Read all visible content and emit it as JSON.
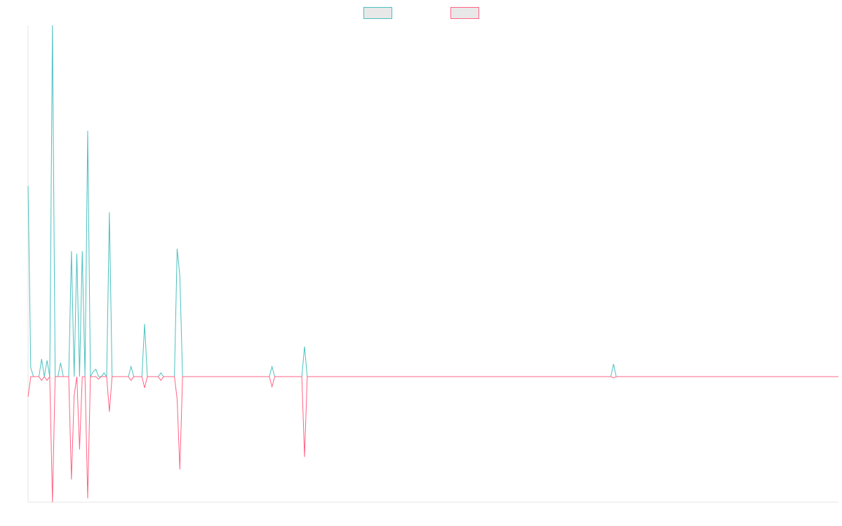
{
  "chart_data": {
    "type": "line",
    "title": "",
    "xlabel": "",
    "ylabel": "",
    "grid": false,
    "legend_placement": "top-center",
    "x_count": 300,
    "ylim": [
      -1.0,
      2.8
    ],
    "series": [
      {
        "label": "",
        "color": "#4bc0c0",
        "fill": "#e8e8e8",
        "points": [
          [
            0,
            1.52
          ],
          [
            1,
            0.07
          ],
          [
            2,
            0.0
          ],
          [
            3,
            0.0
          ],
          [
            4,
            0.0
          ],
          [
            5,
            0.14
          ],
          [
            6,
            0.0
          ],
          [
            7,
            0.13
          ],
          [
            8,
            0.0
          ],
          [
            9,
            2.8
          ],
          [
            10,
            0.0
          ],
          [
            11,
            0.0
          ],
          [
            12,
            0.11
          ],
          [
            13,
            0.0
          ],
          [
            14,
            0.0
          ],
          [
            15,
            0.0
          ],
          [
            16,
            1.0
          ],
          [
            17,
            0.0
          ],
          [
            18,
            0.98
          ],
          [
            19,
            0.0
          ],
          [
            20,
            1.0
          ],
          [
            21,
            0.0
          ],
          [
            22,
            1.96
          ],
          [
            23,
            0.0
          ],
          [
            24,
            0.04
          ],
          [
            25,
            0.06
          ],
          [
            26,
            0.0
          ],
          [
            27,
            0.0
          ],
          [
            28,
            0.03
          ],
          [
            29,
            0.0
          ],
          [
            30,
            1.31
          ],
          [
            31,
            0.0
          ],
          [
            32,
            0.0
          ],
          [
            33,
            0.0
          ],
          [
            34,
            0.0
          ],
          [
            35,
            0.0
          ],
          [
            36,
            0.0
          ],
          [
            37,
            0.0
          ],
          [
            38,
            0.08
          ],
          [
            39,
            0.0
          ],
          [
            40,
            0.0
          ],
          [
            41,
            0.0
          ],
          [
            42,
            0.0
          ],
          [
            43,
            0.42
          ],
          [
            44,
            0.0
          ],
          [
            45,
            0.0
          ],
          [
            46,
            0.0
          ],
          [
            47,
            0.0
          ],
          [
            48,
            0.0
          ],
          [
            49,
            0.03
          ],
          [
            50,
            0.0
          ],
          [
            51,
            0.0
          ],
          [
            52,
            0.0
          ],
          [
            53,
            0.0
          ],
          [
            54,
            0.0
          ],
          [
            55,
            1.02
          ],
          [
            56,
            0.8
          ],
          [
            57,
            0.0
          ],
          [
            58,
            0.0
          ],
          [
            89,
            0.0
          ],
          [
            90,
            0.08
          ],
          [
            91,
            0.0
          ],
          [
            101,
            0.0
          ],
          [
            102,
            0.24
          ],
          [
            103,
            0.0
          ],
          [
            215,
            0.0
          ],
          [
            216,
            0.1
          ],
          [
            217,
            0.0
          ],
          [
            299,
            0.0
          ]
        ]
      },
      {
        "label": "",
        "color": "#ff6384",
        "fill": "#e8e8e8",
        "points": [
          [
            0,
            -0.16
          ],
          [
            1,
            0.0
          ],
          [
            2,
            0.0
          ],
          [
            3,
            0.0
          ],
          [
            4,
            0.0
          ],
          [
            5,
            -0.03
          ],
          [
            6,
            0.0
          ],
          [
            7,
            -0.03
          ],
          [
            8,
            0.0
          ],
          [
            9,
            -1.0
          ],
          [
            10,
            0.0
          ],
          [
            11,
            0.0
          ],
          [
            12,
            0.0
          ],
          [
            13,
            0.0
          ],
          [
            14,
            0.0
          ],
          [
            15,
            0.0
          ],
          [
            16,
            -0.82
          ],
          [
            17,
            -0.15
          ],
          [
            18,
            0.0
          ],
          [
            19,
            -0.58
          ],
          [
            20,
            0.0
          ],
          [
            21,
            0.0
          ],
          [
            22,
            -0.97
          ],
          [
            23,
            0.0
          ],
          [
            24,
            0.0
          ],
          [
            25,
            0.0
          ],
          [
            26,
            -0.02
          ],
          [
            27,
            0.0
          ],
          [
            28,
            0.0
          ],
          [
            29,
            0.0
          ],
          [
            30,
            -0.28
          ],
          [
            31,
            0.0
          ],
          [
            32,
            0.0
          ],
          [
            33,
            0.0
          ],
          [
            34,
            0.0
          ],
          [
            35,
            0.0
          ],
          [
            36,
            0.0
          ],
          [
            37,
            0.0
          ],
          [
            38,
            -0.03
          ],
          [
            39,
            0.0
          ],
          [
            40,
            0.0
          ],
          [
            41,
            0.0
          ],
          [
            42,
            0.0
          ],
          [
            43,
            -0.09
          ],
          [
            44,
            0.0
          ],
          [
            45,
            0.0
          ],
          [
            46,
            0.0
          ],
          [
            47,
            0.0
          ],
          [
            48,
            0.0
          ],
          [
            49,
            -0.03
          ],
          [
            50,
            0.0
          ],
          [
            51,
            0.0
          ],
          [
            52,
            0.0
          ],
          [
            53,
            0.0
          ],
          [
            54,
            0.0
          ],
          [
            55,
            -0.18
          ],
          [
            56,
            -0.74
          ],
          [
            57,
            0.0
          ],
          [
            58,
            0.0
          ],
          [
            89,
            0.0
          ],
          [
            90,
            -0.08
          ],
          [
            91,
            0.0
          ],
          [
            101,
            0.0
          ],
          [
            102,
            -0.64
          ],
          [
            103,
            0.0
          ],
          [
            215,
            0.0
          ],
          [
            216,
            -0.01
          ],
          [
            217,
            0.0
          ],
          [
            299,
            0.0
          ]
        ]
      }
    ]
  }
}
